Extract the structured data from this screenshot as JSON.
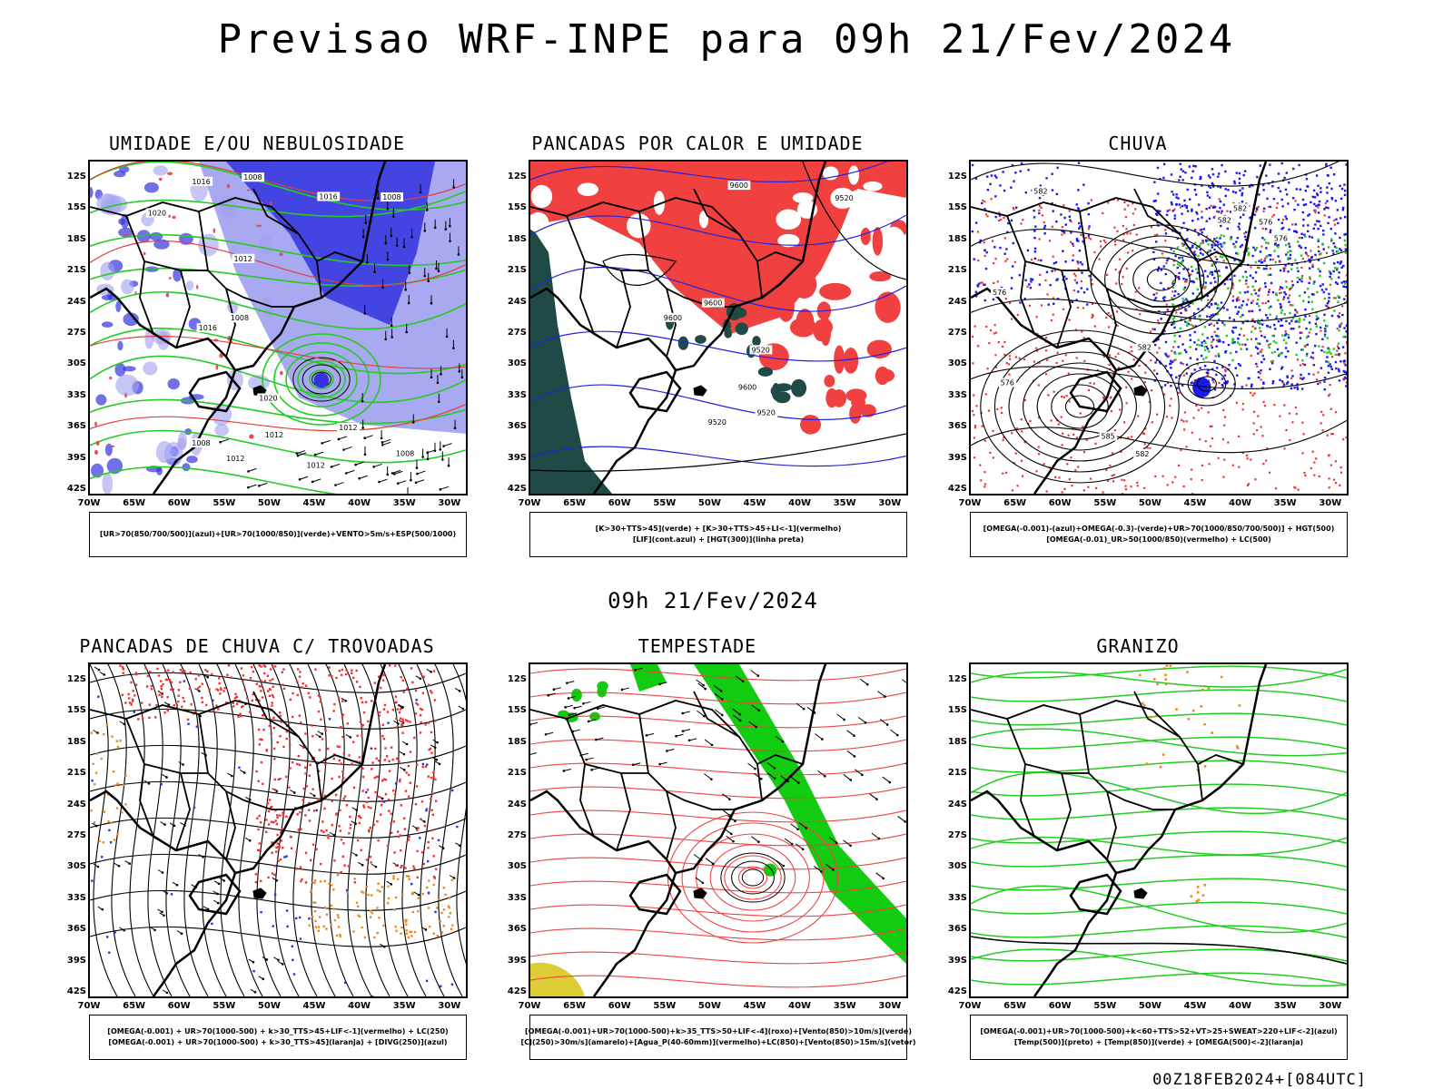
{
  "header": {
    "title": "Previsao WRF-INPE  para 09h 21/Fev/2024"
  },
  "mid_date": "09h 21/Fev/2024",
  "footer_stamp": "00Z18FEB2024+[084UTC]",
  "axes": {
    "lat_labels": [
      "12S",
      "15S",
      "18S",
      "21S",
      "24S",
      "27S",
      "30S",
      "33S",
      "36S",
      "39S",
      "42S"
    ],
    "lon_labels": [
      "70W",
      "65W",
      "60W",
      "55W",
      "50W",
      "45W",
      "40W",
      "35W",
      "30W"
    ]
  },
  "panels": [
    {
      "title": "UMIDADE E/OU NEBULOSIDADE",
      "legend": [
        "[UR>70(850/700/500)](azul)+[UR>70(1000/850)](verde)+VENTO>5m/s+ESP(500/1000)"
      ],
      "contour_labels": [
        "1012",
        "1012",
        "1008",
        "1012",
        "1016",
        "1020",
        "1016",
        "1008",
        "1008",
        "1012",
        "1008",
        "1012",
        "1008",
        "1020",
        "1016"
      ],
      "colors": {
        "blue": "#3333e0",
        "lightblue": "#a0a0f0",
        "green": "#22cc22",
        "red": "#e04040"
      }
    },
    {
      "title": "PANCADAS POR CALOR E UMIDADE",
      "legend": [
        "[K>30+TTS>45](verde) + [K>30+TTS>45+LI<-1](vermelho)",
        "[LIF](cont.azul) + [HGT(300)](linha preta)"
      ],
      "contour_labels": [
        "9600",
        "9600",
        "9520",
        "9600",
        "9600",
        "9520",
        "9520",
        "9520"
      ],
      "colors": {
        "red": "#f04040",
        "darkgreen": "#1f4a45",
        "blue": "#2222dd"
      }
    },
    {
      "title": "CHUVA",
      "legend": [
        "[OMEGA(-0.001)-(azul)+OMEGA(-0.3)-(verde)+UR>70(1000/850/700/500)] + HGT(500)",
        "[OMEGA(-0.01)_UR>50(1000/850)(vermelho) + LC(500)"
      ],
      "contour_labels": [
        "582",
        "585",
        "576",
        "582",
        "582",
        "582",
        "582",
        "576",
        "576",
        "576"
      ],
      "colors": {
        "blue": "#1a1aee",
        "green": "#22cc22",
        "red": "#ee3333"
      }
    },
    {
      "title": "PANCADAS DE CHUVA C/ TROVOADAS",
      "legend": [
        "[OMEGA(-0.001) + UR>70(1000-500) + k>30_TTS>45+LIF<-1](vermelho) + LC(250)",
        "[OMEGA(-0.001) + UR>70(1000-500) + k>30_TTS>45](laranja) + [DIVG(250)](azul)"
      ],
      "colors": {
        "red": "#ee3333",
        "orange": "#ee8822",
        "blue": "#2233ee"
      }
    },
    {
      "title": "TEMPESTADE",
      "legend": [
        "[OMEGA(-0.001)+UR>70(1000-500)+k>35_TTS>50+LIF<-4](roxo)+[Vento(850)>10m/s](verde)",
        "[CJ(250)>30m/s](amarelo)+[Agua_P(40-60mm)](vermelho)+LC(850)+[Vento(850)>15m/s](vetor)"
      ],
      "colors": {
        "green": "#11cc11",
        "red": "#ee4444",
        "yellow": "#ddcc33"
      }
    },
    {
      "title": "GRANIZO",
      "legend": [
        "[OMEGA(-0.001)+UR>70(1000-500)+k<60+TTS>52+VT>25+SWEAT>220+LIF<-2](azul)",
        "[Temp(500)](preto) + [Temp(850)](verde) + [OMEGA(500)<-2](laranja)"
      ],
      "colors": {
        "green": "#22cc22",
        "orange": "#ee8822"
      }
    }
  ]
}
